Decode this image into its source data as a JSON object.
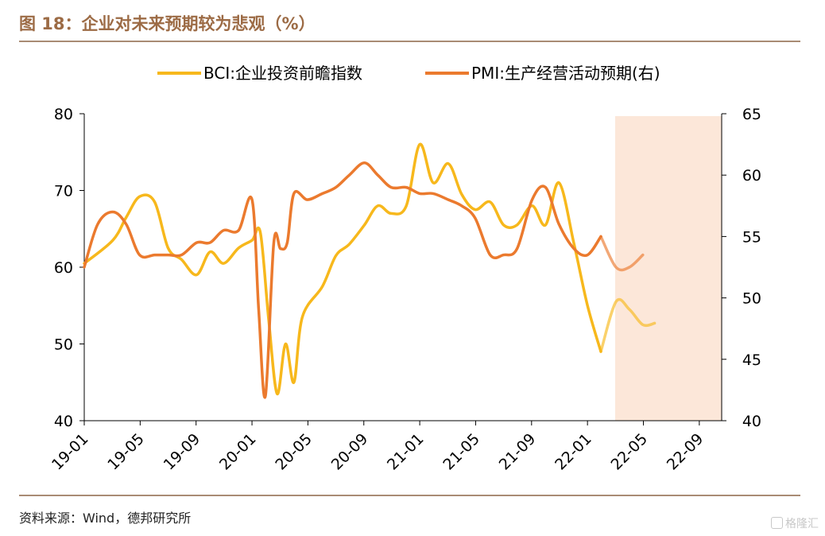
{
  "title": "图 18：企业对未来预期较为悲观（%）",
  "source": "资料来源：Wind，德邦研究所",
  "watermark": "格隆汇",
  "chart_data": {
    "type": "line",
    "x_ticks": [
      "19-01",
      "19-05",
      "19-09",
      "20-01",
      "20-05",
      "20-09",
      "21-01",
      "21-05",
      "21-09",
      "22-01",
      "22-05",
      "22-09"
    ],
    "y_left": {
      "range": [
        40,
        80
      ],
      "ticks": [
        "80",
        "70",
        "60",
        "50",
        "40"
      ]
    },
    "y_right": {
      "range": [
        40,
        65
      ],
      "ticks": [
        "65",
        "60",
        "55",
        "50",
        "45",
        "40"
      ]
    },
    "shaded_region": {
      "from": 2022.12,
      "to": 2022.8,
      "color": "#fce7d9"
    },
    "series": [
      {
        "name": "BCI:企业投资前瞻指数",
        "axis": "left",
        "color": "#f7b81c",
        "x": [
          2019.0,
          2019.17,
          2019.25,
          2019.33,
          2019.42,
          2019.5,
          2019.58,
          2019.67,
          2019.75,
          2019.83,
          2019.92,
          2020.0,
          2020.05,
          2020.1,
          2020.15,
          2020.2,
          2020.25,
          2020.3,
          2020.42,
          2020.5,
          2020.58,
          2020.67,
          2020.75,
          2020.83,
          2020.92,
          2021.0,
          2021.08,
          2021.17,
          2021.25,
          2021.33,
          2021.42,
          2021.5,
          2021.58,
          2021.67,
          2021.75,
          2021.83,
          2021.92,
          2022.0,
          2022.08,
          2022.17,
          2022.25,
          2022.33,
          2022.4,
          2022.5,
          2022.58,
          2022.67,
          2022.75
        ],
        "values": [
          60.5,
          63.5,
          66.5,
          69.2,
          68.5,
          62.5,
          61.0,
          59.0,
          62.0,
          60.5,
          62.5,
          63.5,
          64.5,
          53.0,
          43.5,
          50.0,
          45.0,
          53.5,
          57.5,
          61.5,
          63.0,
          65.5,
          68.0,
          67.0,
          68.0,
          76.0,
          71.0,
          73.5,
          69.5,
          67.5,
          68.5,
          65.5,
          65.5,
          68.0,
          65.5,
          71.0,
          63.0,
          55.0,
          49.0,
          55.5,
          54.5,
          52.5,
          52.7,
          null,
          null,
          null,
          null
        ]
      },
      {
        "name": "PMI:生产经营活动预期(右)",
        "axis": "right",
        "color": "#eb7a2e",
        "x": [
          2019.0,
          2019.08,
          2019.17,
          2019.25,
          2019.33,
          2019.42,
          2019.5,
          2019.58,
          2019.67,
          2019.75,
          2019.83,
          2019.92,
          2020.0,
          2020.04,
          2020.08,
          2020.13,
          2020.17,
          2020.21,
          2020.25,
          2020.33,
          2020.42,
          2020.5,
          2020.58,
          2020.67,
          2020.75,
          2020.83,
          2020.92,
          2021.0,
          2021.08,
          2021.17,
          2021.25,
          2021.33,
          2021.42,
          2021.5,
          2021.58,
          2021.67,
          2021.75,
          2021.83,
          2021.92,
          2022.0,
          2022.08,
          2022.17,
          2022.25,
          2022.33,
          2022.42,
          2022.5,
          2022.58,
          2022.67,
          2022.75
        ],
        "values": [
          52.5,
          56.0,
          57.0,
          56.0,
          53.5,
          53.5,
          53.5,
          53.5,
          54.5,
          54.5,
          55.5,
          55.5,
          58.0,
          49.0,
          42.0,
          54.5,
          54.0,
          54.5,
          58.5,
          58.0,
          58.5,
          59.0,
          60.0,
          61.0,
          60.0,
          59.0,
          59.0,
          58.5,
          58.5,
          58.0,
          57.5,
          56.5,
          53.5,
          53.5,
          54.0,
          58.0,
          59.0,
          56.0,
          54.0,
          53.5,
          55.0,
          52.5,
          52.5,
          53.5,
          null,
          null,
          null,
          null,
          null
        ]
      }
    ]
  }
}
